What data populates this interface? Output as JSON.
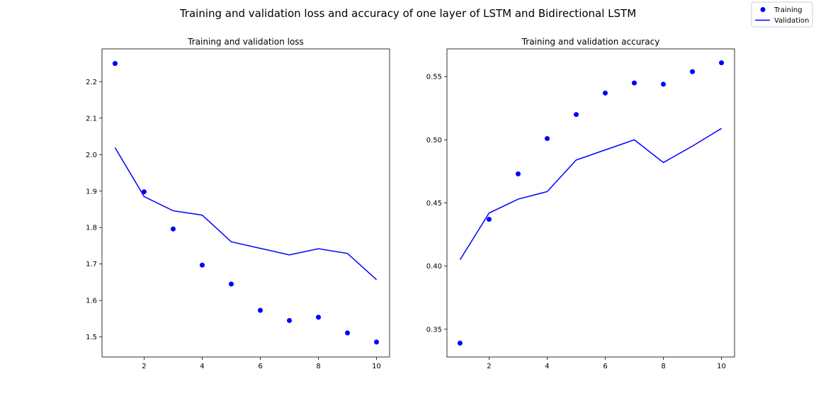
{
  "figure": {
    "suptitle": "Training and validation loss and accuracy of one layer of LSTM and Bidirectional LSTM"
  },
  "legend": {
    "placement": "top-right",
    "entries": [
      {
        "label": "Training",
        "marker": "dot"
      },
      {
        "label": "Validation",
        "marker": "line"
      }
    ]
  },
  "colors": {
    "training": "#0000ff",
    "validation": "#0000ff"
  },
  "chart_data": [
    {
      "type": "scatter",
      "title": "Training and validation loss",
      "xlabel": "",
      "ylabel": "",
      "xlim": [
        0.55,
        10.45
      ],
      "ylim": [
        1.445,
        2.29
      ],
      "xticks": [
        2,
        4,
        6,
        8,
        10
      ],
      "yticks": [
        1.5,
        1.6,
        1.7,
        1.8,
        1.9,
        2.0,
        2.1,
        2.2
      ],
      "ytick_labels": [
        "1.5",
        "1.6",
        "1.7",
        "1.8",
        "1.9",
        "2.0",
        "2.1",
        "2.2"
      ],
      "grid": false,
      "x": [
        1,
        2,
        3,
        4,
        5,
        6,
        7,
        8,
        9,
        10
      ],
      "series": [
        {
          "name": "Training",
          "style": "points",
          "values": [
            2.25,
            1.898,
            1.796,
            1.697,
            1.645,
            1.573,
            1.545,
            1.554,
            1.511,
            1.486
          ]
        },
        {
          "name": "Validation",
          "style": "line",
          "values": [
            2.019,
            1.885,
            1.846,
            1.834,
            1.761,
            1.743,
            1.725,
            1.742,
            1.729,
            1.657
          ]
        }
      ]
    },
    {
      "type": "scatter",
      "title": "Training and validation accuracy",
      "xlabel": "",
      "ylabel": "",
      "xlim": [
        0.55,
        10.45
      ],
      "ylim": [
        0.328,
        0.572
      ],
      "xticks": [
        2,
        4,
        6,
        8,
        10
      ],
      "yticks": [
        0.35,
        0.4,
        0.45,
        0.5,
        0.55
      ],
      "ytick_labels": [
        "0.35",
        "0.40",
        "0.45",
        "0.50",
        "0.55"
      ],
      "grid": false,
      "x": [
        1,
        2,
        3,
        4,
        5,
        6,
        7,
        8,
        9,
        10
      ],
      "series": [
        {
          "name": "Training",
          "style": "points",
          "values": [
            0.339,
            0.437,
            0.473,
            0.501,
            0.52,
            0.537,
            0.545,
            0.544,
            0.554,
            0.561
          ]
        },
        {
          "name": "Validation",
          "style": "line",
          "values": [
            0.405,
            0.442,
            0.453,
            0.459,
            0.484,
            0.492,
            0.5,
            0.482,
            0.495,
            0.509
          ]
        }
      ]
    }
  ]
}
